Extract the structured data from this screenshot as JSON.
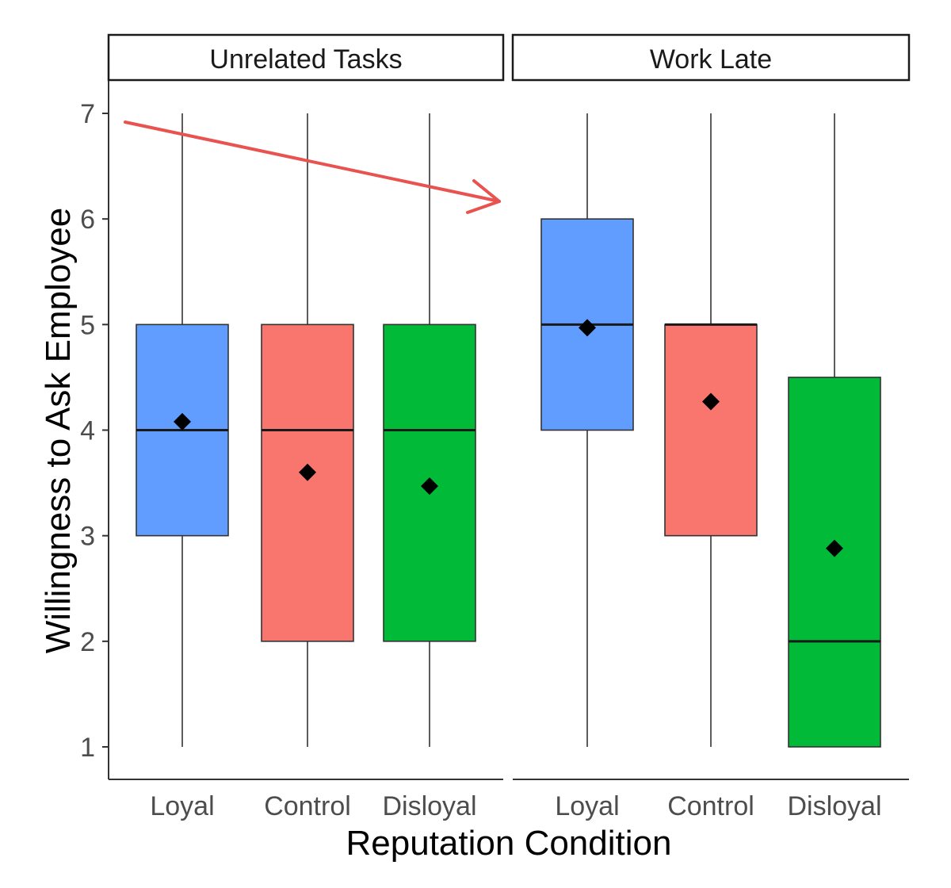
{
  "chart_data": {
    "type": "boxplot",
    "xlabel": "Reputation Condition",
    "ylabel": "Willingness to Ask Employee",
    "ylim": [
      1,
      7
    ],
    "y_ticks": [
      1,
      2,
      3,
      4,
      5,
      6,
      7
    ],
    "y_tick_labels": [
      "1",
      "2",
      "3",
      "4",
      "5",
      "6",
      "7"
    ],
    "grid": false,
    "colors": {
      "Loyal": "#619CFF",
      "Control": "#F8766D",
      "Disloyal": "#00BA38"
    },
    "mean_marker": "diamond",
    "annotation": {
      "type": "arrow",
      "color": "#E8524F",
      "from_panel": "Unrelated Tasks",
      "to_panel": "Work Late"
    },
    "panels": [
      {
        "label": "Unrelated Tasks",
        "categories": [
          "Loyal",
          "Control",
          "Disloyal"
        ],
        "boxes": [
          {
            "category": "Loyal",
            "min": 1,
            "q1": 3,
            "median": 4,
            "q3": 5,
            "max": 7,
            "mean": 4.08
          },
          {
            "category": "Control",
            "min": 1,
            "q1": 2,
            "median": 4,
            "q3": 5,
            "max": 7,
            "mean": 3.6
          },
          {
            "category": "Disloyal",
            "min": 1,
            "q1": 2,
            "median": 4,
            "q3": 5,
            "max": 7,
            "mean": 3.47
          }
        ]
      },
      {
        "label": "Work Late",
        "categories": [
          "Loyal",
          "Control",
          "Disloyal"
        ],
        "boxes": [
          {
            "category": "Loyal",
            "min": 1,
            "q1": 4,
            "median": 5,
            "q3": 6,
            "max": 7,
            "mean": 4.97
          },
          {
            "category": "Control",
            "min": 1,
            "q1": 3,
            "median": 5,
            "q3": 5,
            "max": 7,
            "mean": 4.27
          },
          {
            "category": "Disloyal",
            "min": 1,
            "q1": 1,
            "median": 2,
            "q3": 4.5,
            "max": 7,
            "mean": 2.88
          }
        ]
      }
    ]
  }
}
